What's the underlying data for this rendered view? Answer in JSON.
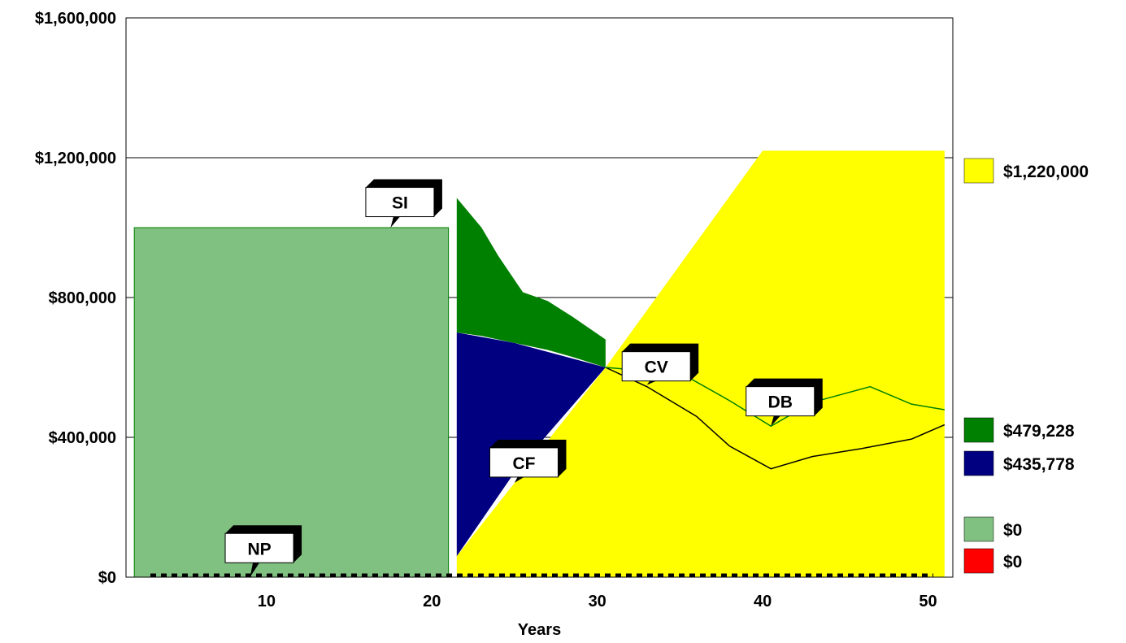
{
  "chart_data": {
    "type": "area",
    "xlabel": "Years",
    "ylabel": "",
    "xlim": [
      1.5,
      51.5
    ],
    "ylim": [
      0,
      1600000
    ],
    "x_ticks": [
      10,
      20,
      30,
      40,
      50
    ],
    "y_ticks": [
      0,
      400000,
      800000,
      1200000,
      1600000
    ],
    "y_tick_labels": [
      "$0",
      "$400,000",
      "$800,000",
      "$1,200,000",
      "$1,600,000"
    ],
    "grid": "horizontal",
    "series": [
      {
        "label": "SI",
        "color": "#80c080",
        "kind": "band",
        "x": [
          2,
          21
        ],
        "upper": [
          1000000,
          1000000
        ],
        "lower": [
          0,
          0
        ]
      },
      {
        "label": "CF",
        "color": "#000080",
        "kind": "band",
        "x": [
          21.5,
          25,
          30.5
        ],
        "upper": [
          700000,
          670000,
          600000
        ],
        "lower": [
          60000,
          300000,
          600000
        ]
      },
      {
        "label": "DB",
        "color": "#008000",
        "kind": "band",
        "x": [
          21.5,
          23,
          24,
          25.5,
          27,
          28.5,
          30.5
        ],
        "upper": [
          1085000,
          1000000,
          920000,
          815000,
          790000,
          745000,
          680000
        ],
        "lower": [
          700000,
          690000,
          680000,
          665000,
          650000,
          630000,
          600000
        ]
      },
      {
        "label": "yellow",
        "color": "#ffff00",
        "kind": "band",
        "x": [
          21.5,
          30.5,
          40,
          51
        ],
        "upper": [
          60000,
          600000,
          1220000,
          1220000
        ],
        "lower": [
          0,
          0,
          0,
          0
        ]
      },
      {
        "label": "CV",
        "color": "#000000",
        "kind": "line",
        "x": [
          30.5,
          33,
          36,
          38,
          40.5,
          43,
          46,
          49,
          51
        ],
        "y": [
          600000,
          545000,
          460000,
          375000,
          310000,
          345000,
          368000,
          395000,
          436000
        ]
      },
      {
        "label": "DB-line",
        "color": "#008000",
        "kind": "line",
        "x": [
          30.5,
          33,
          35,
          38,
          40.5,
          43,
          46.5,
          49,
          51
        ],
        "y": [
          600000,
          590000,
          585000,
          505000,
          432000,
          500000,
          545000,
          495000,
          479000
        ]
      },
      {
        "label": "NP",
        "color": "#000000",
        "kind": "dotted",
        "x": [
          1.5,
          51.5
        ],
        "y": [
          0,
          0
        ]
      }
    ],
    "callouts": [
      {
        "text": "SI",
        "x": 17.5,
        "y": 1000000,
        "box_x": 16,
        "box_y": 1115000
      },
      {
        "text": "NP",
        "x": 9,
        "y": 0,
        "box_x": 7.5,
        "box_y": 125000
      },
      {
        "text": "CF",
        "x": 25,
        "y": 270000,
        "box_x": 23.5,
        "box_y": 370000
      },
      {
        "text": "CV",
        "x": 33,
        "y": 550000,
        "box_x": 31.5,
        "box_y": 645000
      },
      {
        "text": "DB",
        "x": 40.5,
        "y": 432000,
        "box_x": 39,
        "box_y": 545000
      }
    ],
    "legend": {
      "placement": "right",
      "items": [
        {
          "color": "#ffff00",
          "label": "$1,220,000",
          "value": 1220000
        },
        {
          "color": "#008000",
          "label": "$479,228",
          "value": 479228
        },
        {
          "color": "#000080",
          "label": "$435,778",
          "value": 435778
        },
        {
          "color": "#80c080",
          "label": "$0",
          "value": 0
        },
        {
          "color": "#ff0000",
          "label": "$0",
          "value": 0
        }
      ]
    }
  }
}
